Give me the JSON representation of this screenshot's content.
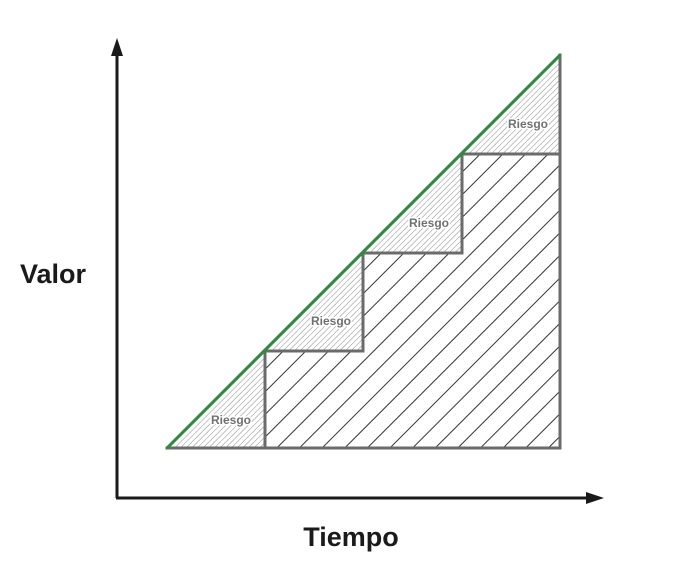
{
  "diagram": {
    "y_axis_label": "Valor",
    "x_axis_label": "Tiempo",
    "risk_label": "Riesgo",
    "steps": 4,
    "colors": {
      "axis": "#1a1a1a",
      "step_outline": "#6b6b6b",
      "hatch_dense": "#7a7a7a",
      "hatch_wide": "#333333",
      "diagonal_line": "#2e8b3e",
      "risk_text": "#707070"
    }
  }
}
